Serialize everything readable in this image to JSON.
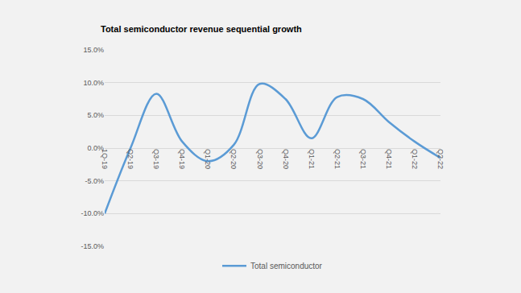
{
  "chart_data": {
    "type": "line",
    "title": "Total semiconductor revenue sequential growth",
    "categories": [
      "1Q-19",
      "Q2-19",
      "Q3-19",
      "Q4-19",
      "Q1-20",
      "Q2-20",
      "Q3-20",
      "Q4-20",
      "Q1-21",
      "Q2-21",
      "Q3-21",
      "Q4-21",
      "Q1-22",
      "Q2-22"
    ],
    "series": [
      {
        "name": "Total semiconductor",
        "color": "#5b9bd5",
        "values": [
          -10.0,
          0.0,
          8.3,
          1.0,
          -2.0,
          0.5,
          9.8,
          7.5,
          1.5,
          7.8,
          7.5,
          4.0,
          1.0,
          -1.5
        ]
      }
    ],
    "ylim": [
      -15,
      15
    ],
    "yticks": [
      {
        "value": -15,
        "label": "-15.0%"
      },
      {
        "value": -10,
        "label": "-10.0%"
      },
      {
        "value": -5,
        "label": "-5.0%"
      },
      {
        "value": 0,
        "label": "0.0%"
      },
      {
        "value": 5,
        "label": "5.0%"
      },
      {
        "value": 10,
        "label": "10.0%"
      },
      {
        "value": 15,
        "label": "15.0%"
      }
    ],
    "grid": true,
    "legend": "bottom",
    "line_style": "smooth"
  }
}
